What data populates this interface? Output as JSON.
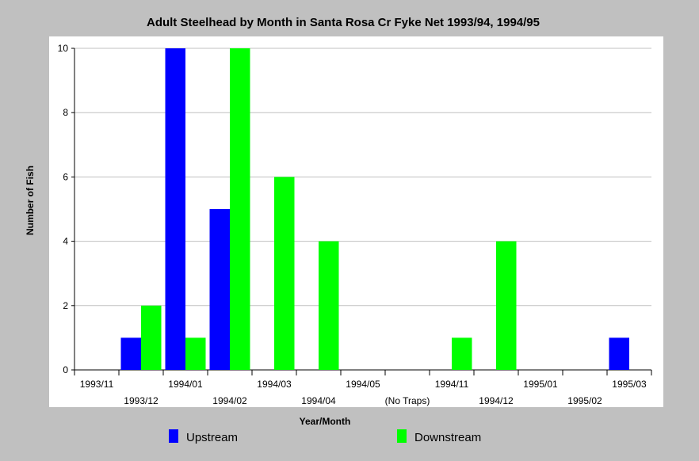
{
  "chart_data": {
    "type": "bar",
    "title": "Adult Steelhead by Month in Santa Rosa Cr Fyke Net 1993/94, 1994/95",
    "xlabel": "Year/Month",
    "ylabel": "Number of Fish",
    "ylim": [
      0,
      10
    ],
    "yticks": [
      "0",
      "2",
      "4",
      "6",
      "8",
      "10"
    ],
    "categories": [
      "1993/11",
      "1993/12",
      "1994/01",
      "1994/02",
      "1994/03",
      "1994/04",
      "1994/05",
      "(No Traps)",
      "1994/11",
      "1994/12",
      "1995/01",
      "1995/02",
      "1995/03"
    ],
    "series": [
      {
        "name": "Upstream",
        "color": "#0000ff",
        "values": [
          0,
          1,
          10,
          5,
          0,
          0,
          0,
          0,
          0,
          0,
          0,
          0,
          1
        ]
      },
      {
        "name": "Downstream",
        "color": "#00ff00",
        "values": [
          0,
          2,
          1,
          10,
          6,
          4,
          0,
          0,
          1,
          4,
          0,
          0,
          0
        ]
      }
    ],
    "grid": true,
    "legend_position": "bottom",
    "colors": {
      "background": "#c0c0c0",
      "plot_area": "#ffffff",
      "gridline": "#c0c0c0"
    }
  }
}
